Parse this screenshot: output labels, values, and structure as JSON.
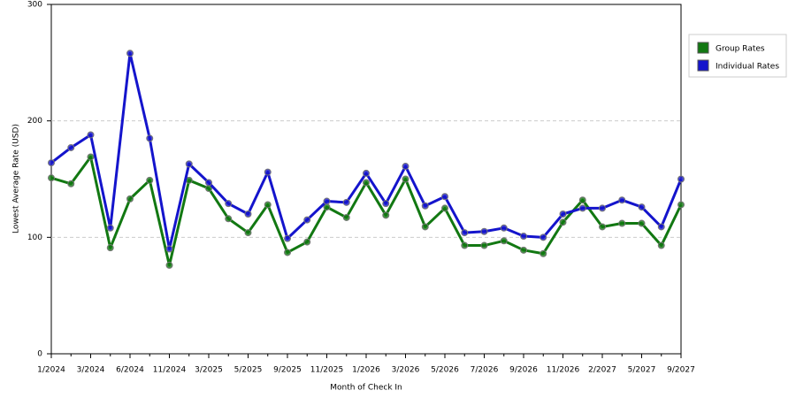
{
  "chart_data": {
    "type": "line",
    "x_label": "Month of Check In",
    "y_label": "Lowest Average Rate (USD)",
    "categories": [
      "1/2024",
      null,
      "3/2024",
      null,
      "6/2024",
      null,
      "11/2024",
      null,
      "3/2025",
      null,
      "5/2025",
      null,
      "9/2025",
      null,
      "11/2025",
      null,
      "1/2026",
      null,
      "3/2026",
      null,
      "5/2026",
      null,
      "7/2026",
      null,
      "9/2026",
      null,
      "11/2026",
      null,
      "2/2027",
      null,
      "5/2027",
      null,
      "9/2027"
    ],
    "series": [
      {
        "name": "Group Rates",
        "color": "#127812",
        "values": [
          151,
          146,
          169,
          91,
          133,
          149,
          76,
          149,
          142,
          116,
          104,
          128,
          87,
          96,
          126,
          117,
          147,
          119,
          150,
          109,
          125,
          93,
          93,
          97,
          89,
          86,
          113,
          132,
          109,
          112,
          112,
          93,
          128
        ]
      },
      {
        "name": "Individual Rates",
        "color": "#1414cc",
        "values": [
          164,
          177,
          188,
          108,
          258,
          185,
          90,
          163,
          147,
          129,
          120,
          156,
          99,
          115,
          131,
          130,
          155,
          129,
          161,
          127,
          135,
          104,
          105,
          108,
          101,
          100,
          120,
          125,
          125,
          132,
          126,
          109,
          150
        ]
      }
    ],
    "ylim": [
      0,
      300
    ],
    "yticks": [
      0,
      100,
      200,
      300
    ],
    "grid": true,
    "legend": "right"
  }
}
